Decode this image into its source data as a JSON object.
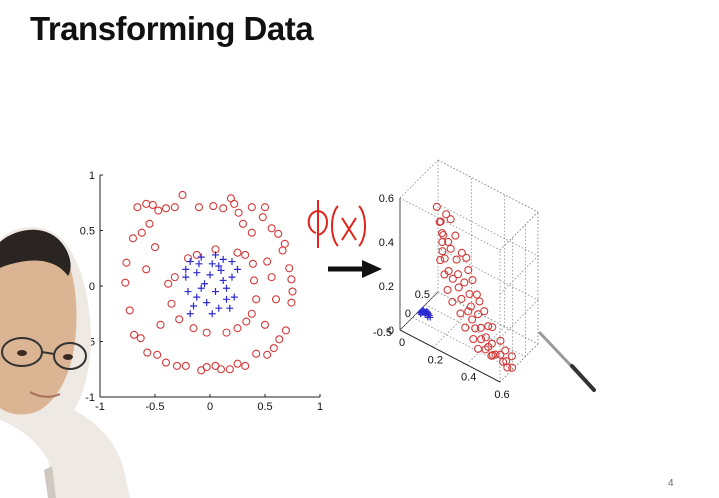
{
  "slide": {
    "title": "Transforming Data",
    "page_number": "4",
    "annotation_text": "ϕ(x)",
    "colors": {
      "class_outer": "#d43b3b",
      "class_inner": "#2b2bd0",
      "annotation": "#e0241b",
      "arrow": "#111111"
    },
    "icons": [
      "right-arrow-icon",
      "presenter-video",
      "laser-pointer"
    ]
  },
  "chart_data": [
    {
      "type": "scatter",
      "title": "",
      "xlabel": "",
      "ylabel": "",
      "xlim": [
        -1,
        1
      ],
      "ylim": [
        -1,
        1
      ],
      "x_ticks": [
        "-1",
        "-0.5",
        "0",
        "0.5",
        "1"
      ],
      "y_ticks": [
        "-1",
        "-0.5",
        "0",
        "0.5",
        "1"
      ],
      "grid": false,
      "series": [
        {
          "marker": "circle",
          "color": "#d43b3b",
          "points": [
            [
              -0.66,
              0.71
            ],
            [
              -0.58,
              0.74
            ],
            [
              -0.52,
              0.73
            ],
            [
              -0.4,
              0.7
            ],
            [
              -0.32,
              0.71
            ],
            [
              -0.1,
              0.71
            ],
            [
              0.03,
              0.72
            ],
            [
              0.12,
              0.7
            ],
            [
              0.19,
              0.79
            ],
            [
              0.22,
              0.74
            ],
            [
              0.26,
              0.66
            ],
            [
              0.38,
              0.71
            ],
            [
              0.5,
              0.71
            ],
            [
              0.56,
              0.52
            ],
            [
              0.62,
              0.47
            ],
            [
              0.68,
              0.38
            ],
            [
              0.66,
              0.32
            ],
            [
              0.72,
              0.16
            ],
            [
              0.74,
              0.06
            ],
            [
              0.75,
              -0.05
            ],
            [
              0.74,
              -0.15
            ],
            [
              0.69,
              -0.4
            ],
            [
              0.63,
              -0.48
            ],
            [
              0.58,
              -0.56
            ],
            [
              0.52,
              -0.62
            ],
            [
              0.42,
              -0.61
            ],
            [
              0.32,
              -0.72
            ],
            [
              0.25,
              -0.7
            ],
            [
              0.18,
              -0.75
            ],
            [
              0.1,
              -0.75
            ],
            [
              0.05,
              -0.72
            ],
            [
              -0.03,
              -0.73
            ],
            [
              -0.08,
              -0.76
            ],
            [
              -0.22,
              -0.72
            ],
            [
              -0.3,
              -0.72
            ],
            [
              -0.4,
              -0.69
            ],
            [
              -0.48,
              -0.62
            ],
            [
              -0.57,
              -0.6
            ],
            [
              -0.63,
              -0.47
            ],
            [
              -0.69,
              -0.44
            ],
            [
              -0.73,
              -0.22
            ],
            [
              -0.77,
              0.03
            ],
            [
              -0.76,
              0.21
            ],
            [
              -0.7,
              0.43
            ],
            [
              -0.62,
              0.48
            ],
            [
              -0.55,
              0.56
            ],
            [
              -0.47,
              0.68
            ],
            [
              0.3,
              0.56
            ],
            [
              0.48,
              0.62
            ],
            [
              -0.25,
              0.82
            ]
          ]
        },
        {
          "marker": "circle",
          "color": "#d43b3b",
          "points": [
            [
              -0.2,
              0.25
            ],
            [
              -0.12,
              0.28
            ],
            [
              -0.32,
              0.08
            ],
            [
              0.05,
              0.33
            ],
            [
              0.25,
              0.3
            ],
            [
              0.32,
              0.28
            ],
            [
              0.39,
              0.2
            ],
            [
              0.4,
              0.05
            ],
            [
              0.42,
              -0.12
            ],
            [
              0.38,
              -0.25
            ],
            [
              0.33,
              -0.32
            ],
            [
              0.25,
              -0.38
            ],
            [
              0.15,
              -0.42
            ],
            [
              -0.03,
              -0.42
            ],
            [
              -0.15,
              -0.38
            ],
            [
              -0.28,
              -0.3
            ],
            [
              -0.35,
              -0.16
            ],
            [
              -0.38,
              0.02
            ],
            [
              0.38,
              0.48
            ],
            [
              0.56,
              0.08
            ],
            [
              0.52,
              0.22
            ],
            [
              0.6,
              -0.12
            ],
            [
              0.5,
              -0.35
            ],
            [
              -0.5,
              0.35
            ],
            [
              -0.45,
              -0.35
            ],
            [
              -0.58,
              0.15
            ]
          ]
        },
        {
          "marker": "plus",
          "color": "#2b2bd0",
          "points": [
            [
              -0.18,
              0.22
            ],
            [
              -0.08,
              0.26
            ],
            [
              0.02,
              0.2
            ],
            [
              0.12,
              0.24
            ],
            [
              0.2,
              0.22
            ],
            [
              -0.22,
              0.08
            ],
            [
              -0.12,
              0.12
            ],
            [
              0.0,
              0.1
            ],
            [
              0.1,
              0.14
            ],
            [
              0.2,
              0.08
            ],
            [
              -0.2,
              -0.05
            ],
            [
              -0.08,
              -0.02
            ],
            [
              0.05,
              -0.05
            ],
            [
              0.15,
              -0.02
            ],
            [
              0.22,
              -0.1
            ],
            [
              -0.15,
              -0.18
            ],
            [
              -0.03,
              -0.15
            ],
            [
              0.08,
              -0.2
            ],
            [
              0.18,
              -0.2
            ],
            [
              -0.05,
              0.02
            ],
            [
              0.12,
              0.05
            ],
            [
              -0.12,
              -0.1
            ],
            [
              0.02,
              -0.25
            ],
            [
              -0.22,
              0.15
            ],
            [
              0.25,
              0.15
            ],
            [
              0.05,
              0.28
            ],
            [
              -0.1,
              0.2
            ],
            [
              0.15,
              -0.12
            ],
            [
              -0.18,
              -0.25
            ],
            [
              0.08,
              0.18
            ]
          ]
        }
      ]
    },
    {
      "type": "scatter",
      "title": "",
      "z_ticks": [
        "0",
        "0.2",
        "0.4",
        "0.6"
      ],
      "x_ticks": [
        "0",
        "0.2",
        "0.4",
        "0.6"
      ],
      "y_ticks": [
        "-0.5",
        "0",
        "0.5"
      ],
      "xlim": [
        0,
        0.6
      ],
      "ylim": [
        -0.5,
        0.5
      ],
      "zlim": [
        0,
        0.6
      ],
      "grid": true,
      "series": [
        {
          "marker": "circle",
          "color": "#d43b3b",
          "points": [
            [
              0.05,
              0.25,
              0.45
            ],
            [
              0.06,
              0.28,
              0.38
            ],
            [
              0.08,
              0.22,
              0.4
            ],
            [
              0.07,
              0.3,
              0.33
            ],
            [
              0.1,
              0.2,
              0.35
            ],
            [
              0.08,
              0.26,
              0.3
            ],
            [
              0.1,
              0.18,
              0.28
            ],
            [
              0.12,
              0.24,
              0.32
            ],
            [
              0.12,
              0.15,
              0.26
            ],
            [
              0.14,
              0.22,
              0.3
            ],
            [
              0.15,
              0.12,
              0.22
            ],
            [
              0.18,
              0.2,
              0.27
            ],
            [
              0.18,
              0.1,
              0.2
            ],
            [
              0.2,
              0.15,
              0.22
            ],
            [
              0.22,
              0.08,
              0.18
            ],
            [
              0.24,
              0.14,
              0.2
            ],
            [
              0.25,
              0.02,
              0.15
            ],
            [
              0.28,
              0.1,
              0.17
            ],
            [
              0.3,
              -0.02,
              0.12
            ],
            [
              0.3,
              0.05,
              0.13
            ],
            [
              0.33,
              -0.05,
              0.1
            ],
            [
              0.35,
              0.02,
              0.12
            ],
            [
              0.36,
              -0.1,
              0.08
            ],
            [
              0.38,
              -0.04,
              0.08
            ],
            [
              0.4,
              -0.12,
              0.05
            ],
            [
              0.42,
              -0.08,
              0.06
            ],
            [
              0.45,
              -0.15,
              0.04
            ],
            [
              0.46,
              -0.1,
              0.05
            ],
            [
              0.5,
              -0.18,
              0.03
            ],
            [
              0.52,
              -0.14,
              0.03
            ],
            [
              0.55,
              -0.2,
              0.02
            ],
            [
              0.56,
              -0.16,
              0.02
            ],
            [
              0.58,
              -0.22,
              0.01
            ],
            [
              0.6,
              -0.18,
              0.01
            ],
            [
              0.48,
              -0.2,
              0.02
            ],
            [
              0.44,
              -0.18,
              0.03
            ],
            [
              0.4,
              -0.2,
              0.02
            ],
            [
              0.36,
              -0.15,
              0.04
            ],
            [
              0.3,
              -0.1,
              0.06
            ],
            [
              0.26,
              -0.05,
              0.1
            ],
            [
              0.2,
              0.0,
              0.12
            ],
            [
              0.16,
              0.05,
              0.15
            ],
            [
              0.13,
              0.1,
              0.2
            ],
            [
              0.1,
              0.12,
              0.25
            ],
            [
              0.2,
              0.25,
              0.3
            ],
            [
              0.25,
              0.2,
              0.25
            ],
            [
              0.32,
              0.12,
              0.18
            ],
            [
              0.38,
              0.05,
              0.14
            ],
            [
              0.44,
              0.0,
              0.1
            ],
            [
              0.5,
              -0.05,
              0.07
            ],
            [
              0.54,
              -0.1,
              0.05
            ],
            [
              0.28,
              0.18,
              0.22
            ],
            [
              0.34,
              0.1,
              0.16
            ],
            [
              0.42,
              -0.02,
              0.1
            ],
            [
              0.15,
              0.3,
              0.35
            ],
            [
              0.22,
              0.28,
              0.28
            ],
            [
              0.09,
              0.32,
              0.42
            ],
            [
              0.11,
              0.35,
              0.4
            ],
            [
              0.5,
              -0.25,
              0.04
            ],
            [
              0.58,
              -0.1,
              0.04
            ]
          ]
        },
        {
          "marker": "plus",
          "color": "#2b2bd0",
          "points": [
            [
              0.02,
              0.0,
              0.0
            ],
            [
              0.03,
              0.02,
              0.0
            ],
            [
              0.01,
              -0.02,
              0.0
            ],
            [
              0.04,
              0.03,
              0.01
            ],
            [
              0.02,
              0.04,
              0.0
            ],
            [
              0.05,
              0.0,
              0.0
            ],
            [
              0.03,
              -0.03,
              0.01
            ],
            [
              0.01,
              0.01,
              0.0
            ],
            [
              0.04,
              -0.01,
              0.0
            ],
            [
              0.06,
              0.02,
              0.0
            ],
            [
              0.02,
              -0.04,
              0.0
            ],
            [
              0.05,
              0.04,
              0.0
            ],
            [
              0.03,
              0.0,
              0.01
            ],
            [
              0.07,
              -0.01,
              0.0
            ],
            [
              0.01,
              0.05,
              0.0
            ],
            [
              0.04,
              0.06,
              0.0
            ],
            [
              0.06,
              -0.03,
              0.0
            ],
            [
              0.02,
              0.02,
              0.01
            ],
            [
              0.05,
              0.01,
              0.01
            ],
            [
              0.03,
              0.05,
              0.0
            ]
          ]
        }
      ]
    }
  ]
}
